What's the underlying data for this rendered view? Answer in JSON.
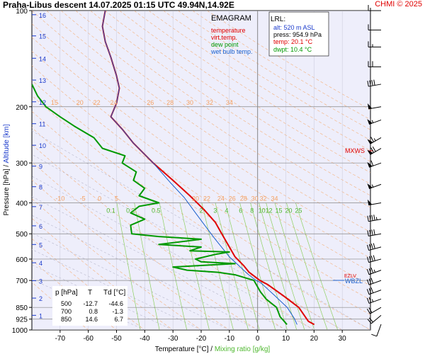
{
  "header": {
    "title": "Praha-Libus   descent   14.07.2025 01:15 UTC  49.94N,14.92E",
    "credit": "CHMI © 2025"
  },
  "legend": {
    "title": "EMAGRAM",
    "items": [
      {
        "label": "temperature",
        "color": "#e00000"
      },
      {
        "label": "virt.temp.",
        "color": "#e00000"
      },
      {
        "label": "dew point",
        "color": "#009900"
      },
      {
        "label": "wet bulb temp.",
        "color": "#1a5fcc"
      }
    ]
  },
  "lrl": {
    "title": "LRL:",
    "alt": "alt: 520 m ASL",
    "press": "press: 954.9 hPa",
    "temp": "temp: 20.1 °C",
    "dwpt": "dwpt: 10.4 °C"
  },
  "table": {
    "headers": [
      "p [hPa]",
      "T",
      "Td [°C]"
    ],
    "rows": [
      [
        "500",
        "-12.7",
        "-44.6"
      ],
      [
        "700",
        "0.8",
        "-1.3"
      ],
      [
        "850",
        "14.6",
        "6.7"
      ]
    ]
  },
  "markers": {
    "mxws": "MXWS",
    "ezlv": "EZLV",
    "wbzl": "WBZL"
  },
  "chart_data": {
    "type": "line",
    "xlabel": "Temperature [°C]",
    "xlabel_sep": " / ",
    "xlabel2": "Mixing ratio [g/kg]",
    "ylabel": "Pressure [hPa]",
    "ylabel_sep": " / ",
    "ylabel2": "Altitude [km]",
    "xlim": [
      -80,
      40
    ],
    "ylim": [
      1000,
      100
    ],
    "y_scale": "log",
    "x_ticks": [
      -70,
      -60,
      -50,
      -40,
      -30,
      -20,
      -10,
      0,
      10,
      20,
      30
    ],
    "y_ticks": [
      100,
      200,
      300,
      400,
      500,
      600,
      700,
      850,
      925,
      1000
    ],
    "altitude_ticks": [
      {
        "km": "1",
        "p": 900
      },
      {
        "km": "2",
        "p": 795
      },
      {
        "km": "3",
        "p": 701
      },
      {
        "km": "4",
        "p": 616
      },
      {
        "km": "5",
        "p": 540
      },
      {
        "km": "6",
        "p": 472
      },
      {
        "km": "7",
        "p": 411
      },
      {
        "km": "8",
        "p": 356
      },
      {
        "km": "9",
        "p": 307
      },
      {
        "km": "10",
        "p": 264
      },
      {
        "km": "11",
        "p": 226
      },
      {
        "km": "12",
        "p": 193
      },
      {
        "km": "13",
        "p": 165
      },
      {
        "km": "14",
        "p": 141
      },
      {
        "km": "15",
        "p": 120
      },
      {
        "km": "16",
        "p": 103
      }
    ],
    "dry_adiabat_labels": [
      {
        "text": "-10",
        "T": -70,
        "p": 400
      },
      {
        "text": "-5",
        "T": -62,
        "p": 400
      },
      {
        "text": "0",
        "T": -56,
        "p": 400
      },
      {
        "text": "5",
        "T": -50,
        "p": 400
      },
      {
        "text": "15",
        "T": -72,
        "p": 200
      },
      {
        "text": "20",
        "T": -63,
        "p": 200
      },
      {
        "text": "22",
        "T": -57,
        "p": 200
      },
      {
        "text": "24",
        "T": -51,
        "p": 200
      },
      {
        "text": "26",
        "T": -38,
        "p": 200
      },
      {
        "text": "28",
        "T": -31,
        "p": 200
      },
      {
        "text": "30",
        "T": -24,
        "p": 200
      },
      {
        "text": "32",
        "T": -17,
        "p": 200
      },
      {
        "text": "34",
        "T": -10,
        "p": 200
      },
      {
        "text": "20",
        "T": -22,
        "p": 400
      },
      {
        "text": "22",
        "T": -18,
        "p": 400
      },
      {
        "text": "24",
        "T": -13,
        "p": 400
      },
      {
        "text": "26",
        "T": -9,
        "p": 400
      },
      {
        "text": "28",
        "T": -5,
        "p": 400
      },
      {
        "text": "30",
        "T": -1,
        "p": 400
      },
      {
        "text": "32",
        "T": 2,
        "p": 400
      },
      {
        "text": "34",
        "T": 6,
        "p": 400
      }
    ],
    "mixing_ratio_labels": [
      {
        "text": "0.1",
        "T": -52,
        "p": 430
      },
      {
        "text": "0.2",
        "T": -45,
        "p": 430
      },
      {
        "text": "0.5",
        "T": -36,
        "p": 430
      },
      {
        "text": "2",
        "T": -20,
        "p": 430
      },
      {
        "text": "3",
        "T": -15,
        "p": 430
      },
      {
        "text": "4",
        "T": -11,
        "p": 430
      },
      {
        "text": "6",
        "T": -6,
        "p": 430
      },
      {
        "text": "8",
        "T": -2,
        "p": 430
      },
      {
        "text": "10",
        "T": 1.5,
        "p": 430
      },
      {
        "text": "12",
        "T": 4,
        "p": 430
      },
      {
        "text": "15",
        "T": 7.5,
        "p": 430
      },
      {
        "text": "20",
        "T": 11,
        "p": 430
      },
      {
        "text": "25",
        "T": 14.5,
        "p": 430
      }
    ],
    "series": [
      {
        "name": "temperature",
        "color": "#e00000",
        "points": [
          [
            20.1,
            962
          ],
          [
            18,
            940
          ],
          [
            14.6,
            850
          ],
          [
            9,
            780
          ],
          [
            3.5,
            720
          ],
          [
            0.8,
            700
          ],
          [
            -3,
            660
          ],
          [
            -5,
            628
          ],
          [
            -8,
            590
          ],
          [
            -12.7,
            500
          ],
          [
            -15,
            460
          ],
          [
            -19,
            420
          ],
          [
            -24,
            380
          ],
          [
            -30,
            340
          ],
          [
            -37,
            300
          ],
          [
            -44,
            260
          ],
          [
            -48,
            235
          ],
          [
            -52,
            215
          ],
          [
            -50,
            195
          ],
          [
            -49,
            175
          ],
          [
            -50,
            160
          ],
          [
            -52,
            140
          ],
          [
            -54,
            125
          ],
          [
            -55,
            112
          ],
          [
            -54,
            100
          ]
        ]
      },
      {
        "name": "wet bulb temp.",
        "color": "#1a5fcc",
        "points": [
          [
            14,
            962
          ],
          [
            13,
            920
          ],
          [
            10.5,
            850
          ],
          [
            6,
            780
          ],
          [
            1,
            710
          ],
          [
            -0.5,
            700
          ],
          [
            -3.5,
            668
          ],
          [
            -7,
            625
          ],
          [
            -10,
            590
          ],
          [
            -15,
            520
          ],
          [
            -18,
            480
          ],
          [
            -22,
            430
          ],
          [
            -26,
            385
          ],
          [
            -31,
            345
          ],
          [
            -37,
            300
          ],
          [
            -44,
            260
          ],
          [
            -48,
            235
          ],
          [
            -52,
            215
          ],
          [
            -50,
            195
          ],
          [
            -49,
            175
          ],
          [
            -50,
            160
          ],
          [
            -52,
            140
          ],
          [
            -54,
            125
          ],
          [
            -55,
            112
          ],
          [
            -54,
            100
          ]
        ]
      },
      {
        "name": "dew point",
        "color": "#009900",
        "points": [
          [
            10.4,
            962
          ],
          [
            9,
            930
          ],
          [
            8,
            910
          ],
          [
            6.7,
            850
          ],
          [
            3,
            800
          ],
          [
            1,
            760
          ],
          [
            -1.3,
            700
          ],
          [
            -8,
            672
          ],
          [
            -14,
            660
          ],
          [
            -25,
            650
          ],
          [
            -30,
            635
          ],
          [
            -15,
            625
          ],
          [
            -8,
            620
          ],
          [
            -20,
            612
          ],
          [
            -22,
            600
          ],
          [
            -15,
            580
          ],
          [
            -10,
            570
          ],
          [
            -24,
            565
          ],
          [
            -20,
            550
          ],
          [
            -35,
            540
          ],
          [
            -20,
            520
          ],
          [
            -35,
            510
          ],
          [
            -44.6,
            500
          ],
          [
            -45,
            470
          ],
          [
            -40,
            450
          ],
          [
            -45,
            430
          ],
          [
            -42,
            410
          ],
          [
            -35,
            400
          ],
          [
            -42,
            380
          ],
          [
            -40,
            360
          ],
          [
            -44,
            340
          ],
          [
            -43,
            320
          ],
          [
            -48,
            300
          ],
          [
            -47,
            285
          ],
          [
            -55,
            270
          ],
          [
            -58,
            250
          ],
          [
            -65,
            230
          ],
          [
            -70,
            215
          ],
          [
            -75,
            200
          ],
          [
            -78,
            185
          ],
          [
            -80,
            170
          ]
        ]
      }
    ],
    "wind_barbs": [
      {
        "p": 960,
        "dir": 200,
        "speed": 10
      },
      {
        "p": 900,
        "dir": 230,
        "speed": 20
      },
      {
        "p": 850,
        "dir": 240,
        "speed": 20
      },
      {
        "p": 800,
        "dir": 250,
        "speed": 25
      },
      {
        "p": 750,
        "dir": 250,
        "speed": 30
      },
      {
        "p": 700,
        "dir": 250,
        "speed": 30
      },
      {
        "p": 650,
        "dir": 250,
        "speed": 35
      },
      {
        "p": 600,
        "dir": 255,
        "speed": 40
      },
      {
        "p": 550,
        "dir": 255,
        "speed": 40
      },
      {
        "p": 500,
        "dir": 260,
        "speed": 40
      },
      {
        "p": 450,
        "dir": 260,
        "speed": 45
      },
      {
        "p": 400,
        "dir": 260,
        "speed": 50
      },
      {
        "p": 350,
        "dir": 250,
        "speed": 55
      },
      {
        "p": 300,
        "dir": 250,
        "speed": 60
      },
      {
        "p": 270,
        "dir": 240,
        "speed": 70
      },
      {
        "p": 250,
        "dir": 240,
        "speed": 65
      },
      {
        "p": 220,
        "dir": 250,
        "speed": 55
      },
      {
        "p": 200,
        "dir": 260,
        "speed": 50
      },
      {
        "p": 170,
        "dir": 260,
        "speed": 40
      },
      {
        "p": 150,
        "dir": 270,
        "speed": 30
      },
      {
        "p": 130,
        "dir": 270,
        "speed": 25
      },
      {
        "p": 115,
        "dir": 270,
        "speed": 20
      },
      {
        "p": 100,
        "dir": 270,
        "speed": 15
      }
    ],
    "grid": true,
    "legend_position": "top-right"
  }
}
